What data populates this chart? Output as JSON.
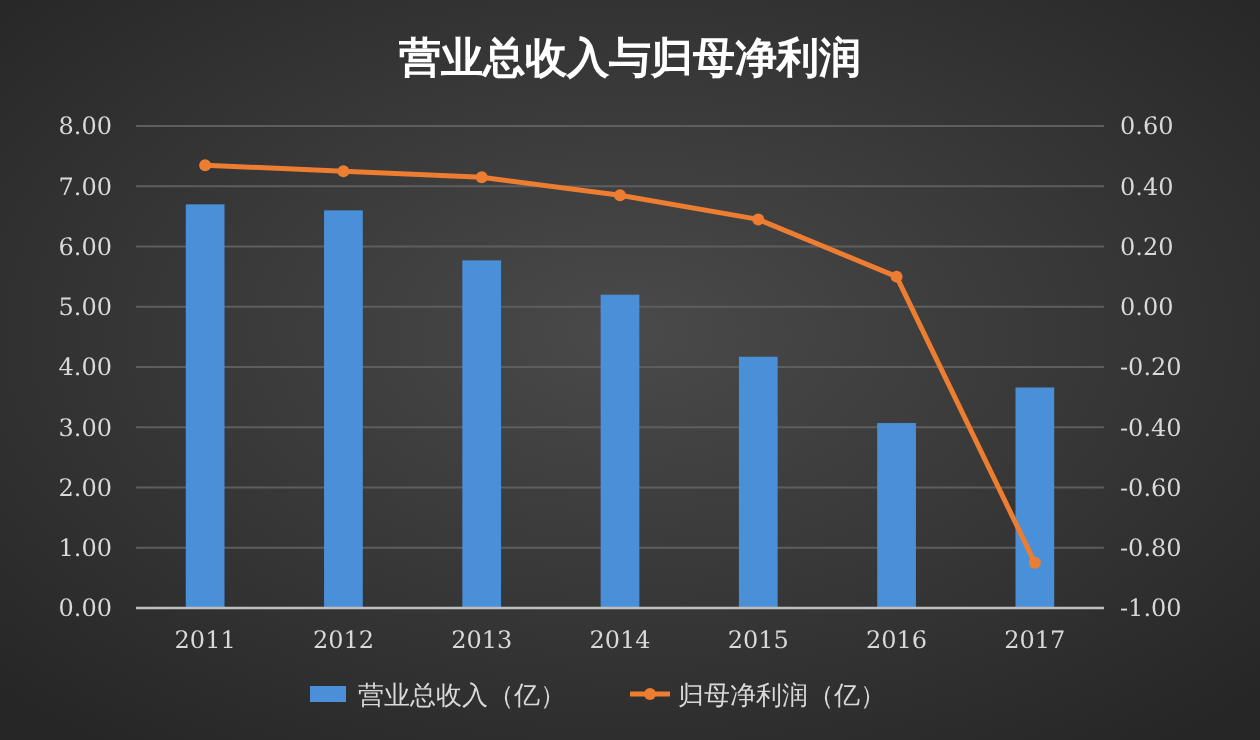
{
  "chart_data": {
    "type": "bar",
    "title": "营业总收入与归母净利润",
    "categories": [
      "2011",
      "2012",
      "2013",
      "2014",
      "2015",
      "2016",
      "2017"
    ],
    "series": [
      {
        "name": "营业总收入（亿）",
        "color": "#4a90d9",
        "values": [
          6.7,
          6.6,
          5.77,
          5.2,
          4.17,
          3.07,
          3.66
        ]
      },
      {
        "name": "归母净利润（亿）",
        "type": "line",
        "axis": "y2",
        "color": "#ed7d31",
        "values": [
          0.47,
          0.45,
          0.43,
          0.37,
          0.29,
          0.1,
          -0.85
        ]
      }
    ],
    "ylim": [
      0,
      8
    ],
    "yticks": [
      {
        "value": 0,
        "label": "0.00"
      },
      {
        "value": 1,
        "label": "1.00"
      },
      {
        "value": 2,
        "label": "2.00"
      },
      {
        "value": 3,
        "label": "3.00"
      },
      {
        "value": 4,
        "label": "4.00"
      },
      {
        "value": 5,
        "label": "5.00"
      },
      {
        "value": 6,
        "label": "6.00"
      },
      {
        "value": 7,
        "label": "7.00"
      },
      {
        "value": 8,
        "label": "8.00"
      }
    ],
    "y2lim": [
      -1,
      0.6
    ],
    "y2ticks": [
      {
        "value": -1,
        "label": "-1.00"
      },
      {
        "value": -0.8,
        "label": "-0.80"
      },
      {
        "value": -0.6,
        "label": "-0.60"
      },
      {
        "value": -0.4,
        "label": "-0.40"
      },
      {
        "value": -0.2,
        "label": "-0.20"
      },
      {
        "value": 0,
        "label": "0.00"
      },
      {
        "value": 0.2,
        "label": "0.20"
      },
      {
        "value": 0.4,
        "label": "0.40"
      },
      {
        "value": 0.6,
        "label": "0.60"
      }
    ],
    "grid": "y",
    "legend": "bottom",
    "marker": "circle",
    "line_style": "solid"
  }
}
